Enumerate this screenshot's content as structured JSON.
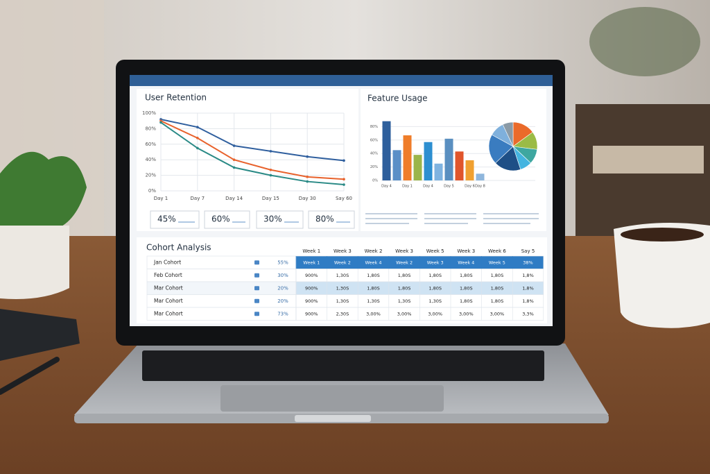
{
  "chart_data": [
    {
      "type": "line",
      "title": "User Retention",
      "categories": [
        "Day 1",
        "Day 7",
        "Day 14",
        "Day 15",
        "Day 30",
        "Say 60"
      ],
      "ylim": [
        0,
        100
      ],
      "yticks": [
        {
          "value": 0,
          "label": "0%"
        },
        {
          "value": 20,
          "label": "20%"
        },
        {
          "value": 40,
          "label": "40%"
        },
        {
          "value": 60,
          "label": "60%"
        },
        {
          "value": 80,
          "label": "80%"
        },
        {
          "value": 100,
          "label": "100%"
        }
      ],
      "grid": true,
      "series": [
        {
          "color": "#2f5f9e",
          "values": [
            92,
            82,
            58,
            51,
            44,
            39
          ]
        },
        {
          "color": "#e8622c",
          "values": [
            90,
            68,
            40,
            27,
            18,
            15
          ]
        },
        {
          "color": "#2a8a86",
          "values": [
            88,
            55,
            30,
            20,
            12,
            8
          ]
        }
      ]
    },
    {
      "type": "bar",
      "title": "Feature Usage",
      "categories": [
        "Day 4",
        null,
        "Day 1",
        null,
        "Day 4",
        null,
        "Day 5",
        null,
        "Day 6",
        "Day 8"
      ],
      "values": [
        88,
        45,
        67,
        38,
        57,
        25,
        62,
        43,
        30,
        10
      ],
      "colors": [
        "#2e5f9c",
        "#5b8fc7",
        "#ef7d2a",
        "#9bb54a",
        "#2d8fd0",
        "#7fb3e0",
        "#5a8fc0",
        "#e0552b",
        "#f0a030",
        "#8fb6dc"
      ],
      "ylim": [
        0,
        100
      ],
      "yticks": [
        {
          "value": 0,
          "label": "0%"
        },
        {
          "value": 20,
          "label": "20%"
        },
        {
          "value": 40,
          "label": "40%"
        },
        {
          "value": 60,
          "label": "60%"
        },
        {
          "value": 80,
          "label": "80%"
        }
      ],
      "grid": true
    },
    {
      "type": "pie",
      "values": [
        15,
        12,
        10,
        8,
        18,
        20,
        10,
        7
      ],
      "colors": [
        "#ea6a2a",
        "#9bbb46",
        "#3ea7a0",
        "#44b4e0",
        "#1e4f86",
        "#3a7cc0",
        "#7fb0dc",
        "#8a9aa6"
      ]
    }
  ],
  "kpis": [
    "45%",
    "60%",
    "30%",
    "80%"
  ],
  "cohort": {
    "title": "Cohort Analysis",
    "headers": [
      "Week 1",
      "Week 3",
      "Week 2",
      "Week 3",
      "Week 5",
      "Week 3",
      "Week 6",
      "Say 5"
    ],
    "rows": [
      {
        "name": "Jan Cohort",
        "rate": "55%",
        "cells": [
          "Week 1",
          "Week 2",
          "Week 4",
          "Week 2",
          "Week 3",
          "Week 4",
          "Week 5",
          "38%"
        ]
      },
      {
        "name": "Feb Cohort",
        "rate": "30%",
        "cells": [
          "900%",
          "1,30S",
          "1,80S",
          "1,80S",
          "1,80S",
          "1,80S",
          "1,80S",
          "1,8%"
        ]
      },
      {
        "name": "Mar Cohort",
        "rate": "20%",
        "cells": [
          "900%",
          "1,30S",
          "1,80S",
          "1,80S",
          "1,80S",
          "1,80S",
          "1,80S",
          "1,8%"
        ]
      },
      {
        "name": "Mar Cohort",
        "rate": "20%",
        "cells": [
          "900%",
          "1,30S",
          "1,30S",
          "1,30S",
          "1,30S",
          "1,80S",
          "1,80S",
          "1,8%"
        ]
      },
      {
        "name": "Mar Cohort",
        "rate": "73%",
        "cells": [
          "900%",
          "2,30S",
          "3,00%",
          "3,00%",
          "3,00%",
          "3,00%",
          "3,00%",
          "3,3%"
        ]
      }
    ]
  }
}
